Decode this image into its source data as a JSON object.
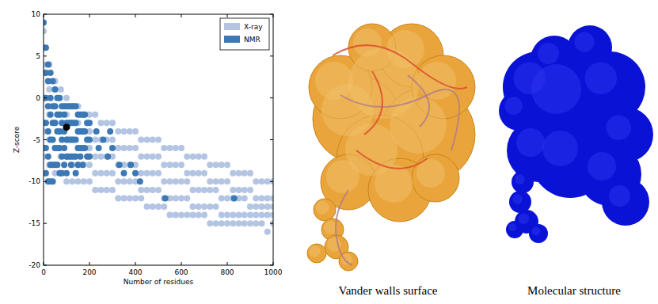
{
  "chart_data": {
    "type": "scatter",
    "x_label": "Number of residues",
    "y_label": "Z-score",
    "xlim": [
      0,
      1000
    ],
    "xticks": [
      0,
      200,
      400,
      600,
      800,
      1000
    ],
    "ylim": [
      -20,
      10
    ],
    "yticks": [
      -20,
      -15,
      -10,
      -5,
      0,
      5,
      10
    ],
    "grid": false,
    "legend": "upper right",
    "series": [
      {
        "name": "X-ray",
        "color": "#b3c5e3",
        "marker": "circle",
        "x": [
          0,
          0,
          0,
          0,
          0,
          25,
          25,
          25,
          25,
          25,
          50,
          50,
          50,
          50,
          50,
          75,
          75,
          75,
          75,
          75,
          100,
          100,
          100,
          100,
          100,
          125,
          125,
          125,
          125,
          125,
          150,
          150,
          150,
          150,
          150,
          175,
          175,
          175,
          175,
          175,
          200,
          200,
          200,
          200,
          200,
          225,
          225,
          225,
          225,
          225,
          250,
          250,
          250,
          250,
          250,
          275,
          275,
          275,
          275,
          275,
          300,
          300,
          300,
          300,
          300,
          325,
          325,
          325,
          325,
          325,
          350,
          350,
          350,
          350,
          350,
          375,
          375,
          375,
          375,
          375,
          400,
          400,
          400,
          400,
          400,
          425,
          425,
          425,
          425,
          425,
          450,
          450,
          450,
          450,
          450,
          475,
          475,
          475,
          475,
          475,
          500,
          500,
          500,
          500,
          500,
          525,
          525,
          525,
          525,
          525,
          550,
          550,
          550,
          550,
          550,
          575,
          575,
          575,
          575,
          575,
          600,
          600,
          600,
          600,
          600,
          625,
          625,
          625,
          625,
          625,
          650,
          650,
          650,
          650,
          650,
          675,
          675,
          675,
          675,
          675,
          700,
          700,
          700,
          700,
          700,
          725,
          725,
          725,
          725,
          725,
          750,
          750,
          750,
          750,
          750,
          775,
          775,
          775,
          775,
          775,
          800,
          800,
          800,
          800,
          800,
          825,
          825,
          825,
          825,
          825,
          850,
          850,
          850,
          850,
          850,
          875,
          875,
          875,
          875,
          875,
          900,
          900,
          900,
          900,
          900,
          925,
          925,
          925,
          925,
          925,
          950,
          950,
          950,
          950,
          950,
          975,
          975,
          975,
          975,
          975,
          1000,
          1000,
          1000,
          1000,
          1000
        ],
        "values": [
          8,
          4,
          0,
          -4,
          -7,
          4,
          1,
          -2,
          -5,
          -8,
          2,
          -1,
          -3,
          -6,
          -9,
          1,
          -2,
          -4,
          -7,
          -9,
          0,
          -2,
          -5,
          -7,
          -10,
          -1,
          -3,
          -5,
          -8,
          -10,
          -1,
          -3,
          -6,
          -8,
          -10,
          -2,
          -4,
          -6,
          -8,
          -10,
          -2,
          -4,
          -6,
          -8,
          -10,
          -2,
          -5,
          -7,
          -9,
          -11,
          -3,
          -5,
          -7,
          -9,
          -11,
          -3,
          -5,
          -7,
          -9,
          -11,
          -3,
          -5,
          -7,
          -9,
          -11,
          -4,
          -6,
          -8,
          -10,
          -12,
          -4,
          -6,
          -8,
          -10,
          -12,
          -4,
          -6,
          -8,
          -10,
          -12,
          -4,
          -6,
          -8,
          -10,
          -12,
          -5,
          -7,
          -9,
          -11,
          -12,
          -5,
          -7,
          -9,
          -11,
          -13,
          -5,
          -7,
          -9,
          -11,
          -13,
          -5,
          -7,
          -9,
          -11,
          -13,
          -6,
          -8,
          -10,
          -12,
          -13,
          -6,
          -8,
          -10,
          -12,
          -14,
          -6,
          -8,
          -10,
          -12,
          -14,
          -6,
          -8,
          -10,
          -12,
          -14,
          -7,
          -9,
          -10,
          -12,
          -14,
          -7,
          -9,
          -11,
          -13,
          -14,
          -7,
          -9,
          -11,
          -13,
          -14,
          -7,
          -9,
          -11,
          -13,
          -14,
          -8,
          -10,
          -11,
          -13,
          -15,
          -8,
          -10,
          -11,
          -13,
          -15,
          -8,
          -10,
          -12,
          -14,
          -15,
          -8,
          -10,
          -12,
          -14,
          -15,
          -9,
          -11,
          -12,
          -14,
          -15,
          -9,
          -11,
          -12,
          -14,
          -15,
          -9,
          -11,
          -12,
          -14,
          -15,
          -9,
          -11,
          -13,
          -14,
          -15,
          -10,
          -12,
          -13,
          -14,
          -15,
          -10,
          -12,
          -13,
          -14,
          -15,
          -10,
          -12,
          -13,
          -14,
          -16,
          -10,
          -12,
          -13,
          -14,
          -15
        ]
      },
      {
        "name": "NMR",
        "color": "#3b78b4",
        "marker": "circle",
        "x": [
          0,
          0,
          0,
          0,
          0,
          0,
          10,
          10,
          10,
          10,
          10,
          10,
          20,
          20,
          20,
          20,
          20,
          20,
          30,
          30,
          30,
          30,
          30,
          30,
          40,
          40,
          40,
          40,
          40,
          40,
          50,
          50,
          50,
          50,
          50,
          60,
          60,
          60,
          60,
          60,
          70,
          70,
          70,
          70,
          70,
          80,
          80,
          80,
          80,
          80,
          90,
          90,
          90,
          90,
          90,
          100,
          100,
          100,
          100,
          100,
          110,
          110,
          110,
          110,
          120,
          120,
          120,
          120,
          120,
          130,
          130,
          130,
          130,
          140,
          140,
          140,
          140,
          140,
          150,
          150,
          150,
          150,
          160,
          160,
          160,
          160,
          170,
          170,
          170,
          170,
          180,
          180,
          180,
          190,
          190,
          190,
          200,
          200,
          200,
          230,
          240,
          260,
          280,
          290,
          300,
          330,
          350,
          380,
          400,
          420,
          530,
          830
        ],
        "values": [
          9,
          6,
          3,
          0,
          -3,
          -6,
          6,
          3,
          0,
          -3,
          -6,
          -9,
          4,
          2,
          -1,
          -4,
          -7,
          -10,
          3,
          0,
          -2,
          -5,
          -8,
          -10,
          2,
          -1,
          -3,
          -5,
          -8,
          -10,
          1,
          -1,
          -3,
          -6,
          -8,
          0,
          -2,
          -4,
          -6,
          -8,
          0,
          -2,
          -4,
          -6,
          -9,
          -1,
          -3,
          -5,
          -7,
          -9,
          -1,
          -2,
          -4,
          -6,
          -8,
          -1,
          -3,
          -5,
          -7,
          -9,
          -1,
          -3,
          -5,
          -7,
          -1,
          -3,
          -5,
          -7,
          -8,
          -1,
          -3,
          -5,
          -7,
          -1,
          -3,
          -5,
          -7,
          -9,
          -2,
          -4,
          -6,
          -8,
          -2,
          -4,
          -6,
          -7,
          -2,
          -4,
          -6,
          -8,
          -2,
          -4,
          -6,
          -3,
          -5,
          -7,
          -3,
          -5,
          -7,
          -4,
          -6,
          -5,
          -7,
          -4,
          -6,
          -8,
          -9,
          -8,
          -9,
          -10,
          -12,
          -12
        ]
      },
      {
        "color": "#000000",
        "marker": "circle",
        "x": [
          100
        ],
        "values": [
          -3.5
        ]
      }
    ]
  },
  "images": [
    {
      "caption": "Vander walls surface",
      "color": "#e9a53c"
    },
    {
      "caption": "Molecular structure",
      "color": "#0a12d6"
    }
  ]
}
